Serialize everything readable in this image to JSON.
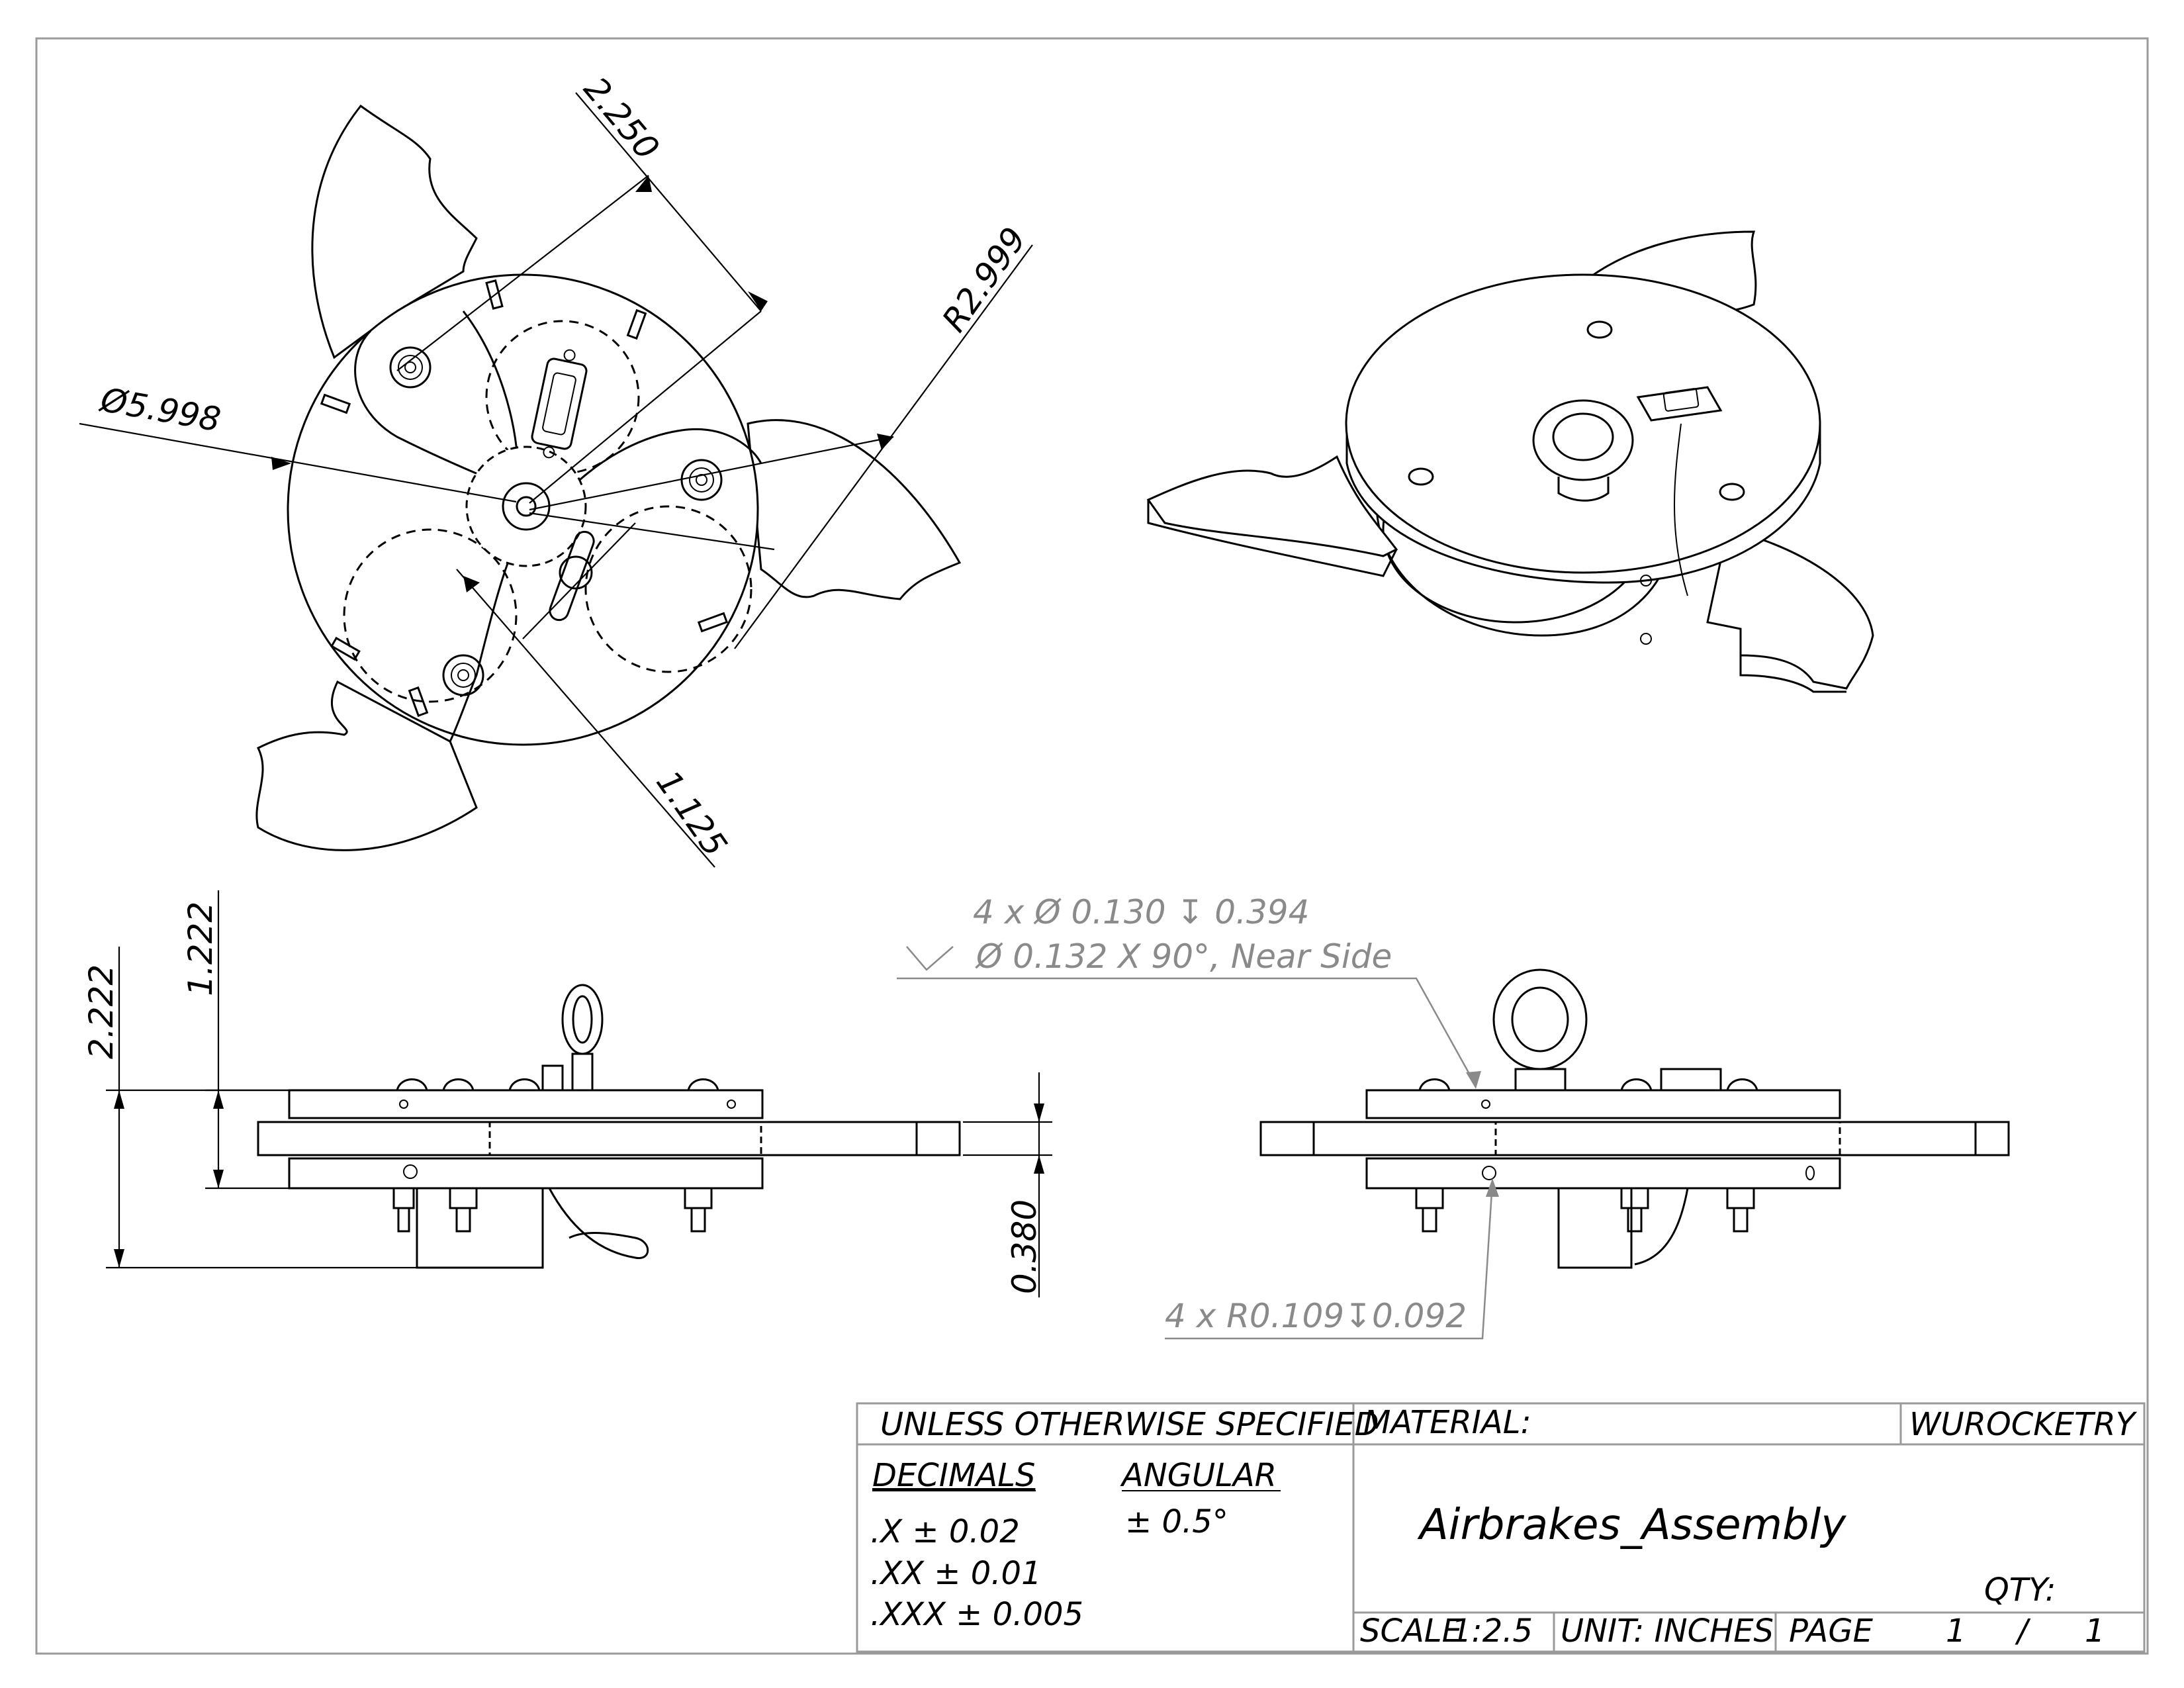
{
  "dimensions": {
    "top_span": "2.250",
    "radius": "R2.999",
    "diameter": "Ø5.998",
    "gear_offset": "1.125",
    "height_upper": "1.222",
    "height_total": "2.222",
    "plate_thickness": "0.380"
  },
  "notes": {
    "hole_line1": "4 x Ø 0.130 ↧ 0.394",
    "hole_line2": "Ø 0.132 X 90°, Near Side",
    "radius_note": "4 x R0.109↧0.092"
  },
  "title_block": {
    "unless": "UNLESS OTHERWISE SPECIFIED",
    "material_label": "MATERIAL:",
    "org": "WUROCKETRY",
    "decimals_label": "DECIMALS",
    "angular_label": "ANGULAR",
    "tol_x": ".X ± 0.02",
    "tol_xx": ".XX ± 0.01",
    "tol_xxx": ".XXX ± 0.005",
    "tol_angular": "± 0.5°",
    "part_name": "Airbrakes_Assembly",
    "qty_label": "QTY:",
    "scale_label": "SCALE",
    "scale_value": "1:2.5",
    "unit_label": "UNIT: INCHES",
    "page_label": "PAGE",
    "page_current": "1",
    "page_sep": "/",
    "page_total": "1"
  }
}
